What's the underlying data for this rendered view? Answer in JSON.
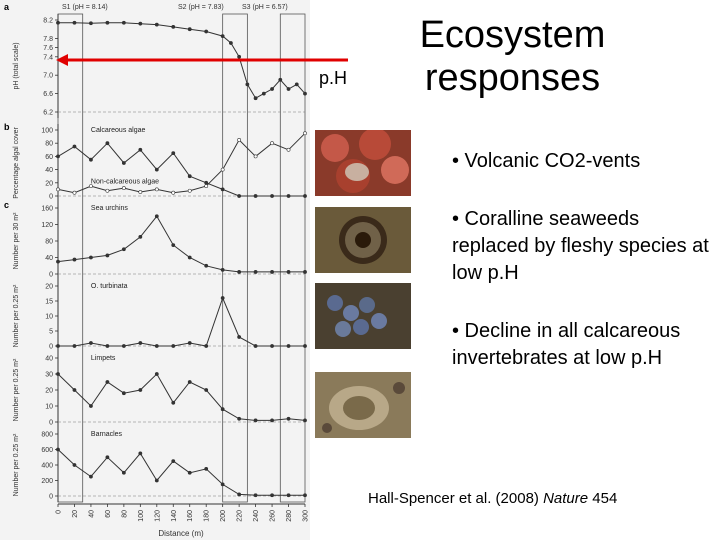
{
  "slide": {
    "title": "Ecosystem responses",
    "ph_label": "p.H",
    "bullets": [
      "• Volcanic CO2-vents",
      "• Coralline seaweeds replaced by fleshy species at low p.H",
      "• Decline in all calcareous invertebrates at low p.H"
    ],
    "citation": {
      "authors": "Hall-Spencer et al. (2008)",
      "journal": "Nature",
      "volume": "454"
    },
    "photos": [
      "coralline-algae-photo",
      "sea-urchin-photo",
      "snails-photo",
      "limpet-photo"
    ],
    "arrow_color": "#e00000"
  },
  "figure": {
    "panel_letters": [
      "a",
      "b",
      "c"
    ],
    "station_labels": [
      "S1 (pH = 8.14)",
      "S2 (pH = 7.83)",
      "S3 (pH = 6.57)"
    ],
    "x_ticks": [
      "0",
      "20",
      "40",
      "60",
      "80",
      "100",
      "120",
      "140",
      "160",
      "180",
      "200",
      "220",
      "240",
      "260",
      "280",
      "300"
    ],
    "x_label": "Distance (m)"
  },
  "chart_data": [
    {
      "type": "line",
      "panel": "a",
      "ylabel": "pH (total scale)",
      "yticks": [
        "8.2",
        "7.8",
        "7.6",
        "7.4",
        "7.0",
        "6.6",
        "6.2"
      ],
      "ylim": [
        6.2,
        8.2
      ],
      "x": [
        0,
        20,
        40,
        60,
        80,
        100,
        120,
        140,
        160,
        180,
        200,
        210,
        220,
        230,
        240,
        250,
        260,
        270,
        280,
        290,
        300
      ],
      "series": [
        {
          "values": [
            8.14,
            8.14,
            8.13,
            8.14,
            8.14,
            8.12,
            8.1,
            8.05,
            8.0,
            7.95,
            7.85,
            7.7,
            7.4,
            6.8,
            6.5,
            6.6,
            6.7,
            6.9,
            6.7,
            6.8,
            6.6
          ]
        }
      ]
    },
    {
      "type": "line",
      "panel": "b",
      "ylabel": "Percentage algal cover",
      "yticks": [
        "100",
        "80",
        "60",
        "40",
        "20",
        "0"
      ],
      "ylim": [
        0,
        100
      ],
      "x": [
        0,
        20,
        40,
        60,
        80,
        100,
        120,
        140,
        160,
        180,
        200,
        220,
        240,
        260,
        280,
        300
      ],
      "series": [
        {
          "name": "Calcareous algae",
          "values": [
            60,
            75,
            55,
            80,
            50,
            70,
            40,
            65,
            30,
            20,
            10,
            0,
            0,
            0,
            0,
            0
          ]
        },
        {
          "name": "Non-calcareous algae",
          "values": [
            10,
            5,
            15,
            8,
            12,
            6,
            10,
            5,
            8,
            15,
            40,
            85,
            60,
            80,
            70,
            95
          ]
        }
      ]
    },
    {
      "type": "line",
      "panel": "c",
      "ylabel": "Number per 30 m²",
      "yticks": [
        "160",
        "120",
        "80",
        "40",
        "0"
      ],
      "ylim": [
        0,
        160
      ],
      "x": [
        0,
        20,
        40,
        60,
        80,
        100,
        120,
        140,
        160,
        180,
        200,
        220,
        240,
        260,
        280,
        300
      ],
      "series": [
        {
          "name": "Sea urchins",
          "values": [
            30,
            35,
            40,
            45,
            60,
            90,
            140,
            70,
            40,
            20,
            10,
            5,
            5,
            5,
            5,
            5
          ]
        }
      ]
    },
    {
      "type": "line",
      "ylabel": "Number per 0.25 m²",
      "yticks": [
        "20",
        "15",
        "10",
        "5",
        "0"
      ],
      "ylim": [
        0,
        20
      ],
      "x": [
        0,
        20,
        40,
        60,
        80,
        100,
        120,
        140,
        160,
        180,
        200,
        220,
        240,
        260,
        280,
        300
      ],
      "series": [
        {
          "name": "O. turbinata",
          "values": [
            0,
            0,
            1,
            0,
            0,
            1,
            0,
            0,
            1,
            0,
            16,
            3,
            0,
            0,
            0,
            0
          ]
        }
      ]
    },
    {
      "type": "line",
      "ylabel": "Number per 0.25 m²",
      "yticks": [
        "40",
        "30",
        "20",
        "10",
        "0"
      ],
      "ylim": [
        0,
        40
      ],
      "x": [
        0,
        20,
        40,
        60,
        80,
        100,
        120,
        140,
        160,
        180,
        200,
        220,
        240,
        260,
        280,
        300
      ],
      "series": [
        {
          "name": "Limpets",
          "values": [
            30,
            20,
            10,
            25,
            18,
            20,
            30,
            12,
            25,
            20,
            8,
            2,
            1,
            1,
            2,
            1
          ]
        }
      ]
    },
    {
      "type": "line",
      "ylabel": "Number per 0.25 m²",
      "yticks": [
        "800",
        "600",
        "400",
        "200",
        "0"
      ],
      "ylim": [
        0,
        800
      ],
      "x": [
        0,
        20,
        40,
        60,
        80,
        100,
        120,
        140,
        160,
        180,
        200,
        220,
        240,
        260,
        280,
        300
      ],
      "series": [
        {
          "name": "Barnacles",
          "values": [
            600,
            400,
            250,
            500,
            300,
            550,
            200,
            450,
            300,
            350,
            150,
            20,
            10,
            10,
            10,
            10
          ]
        }
      ]
    }
  ]
}
